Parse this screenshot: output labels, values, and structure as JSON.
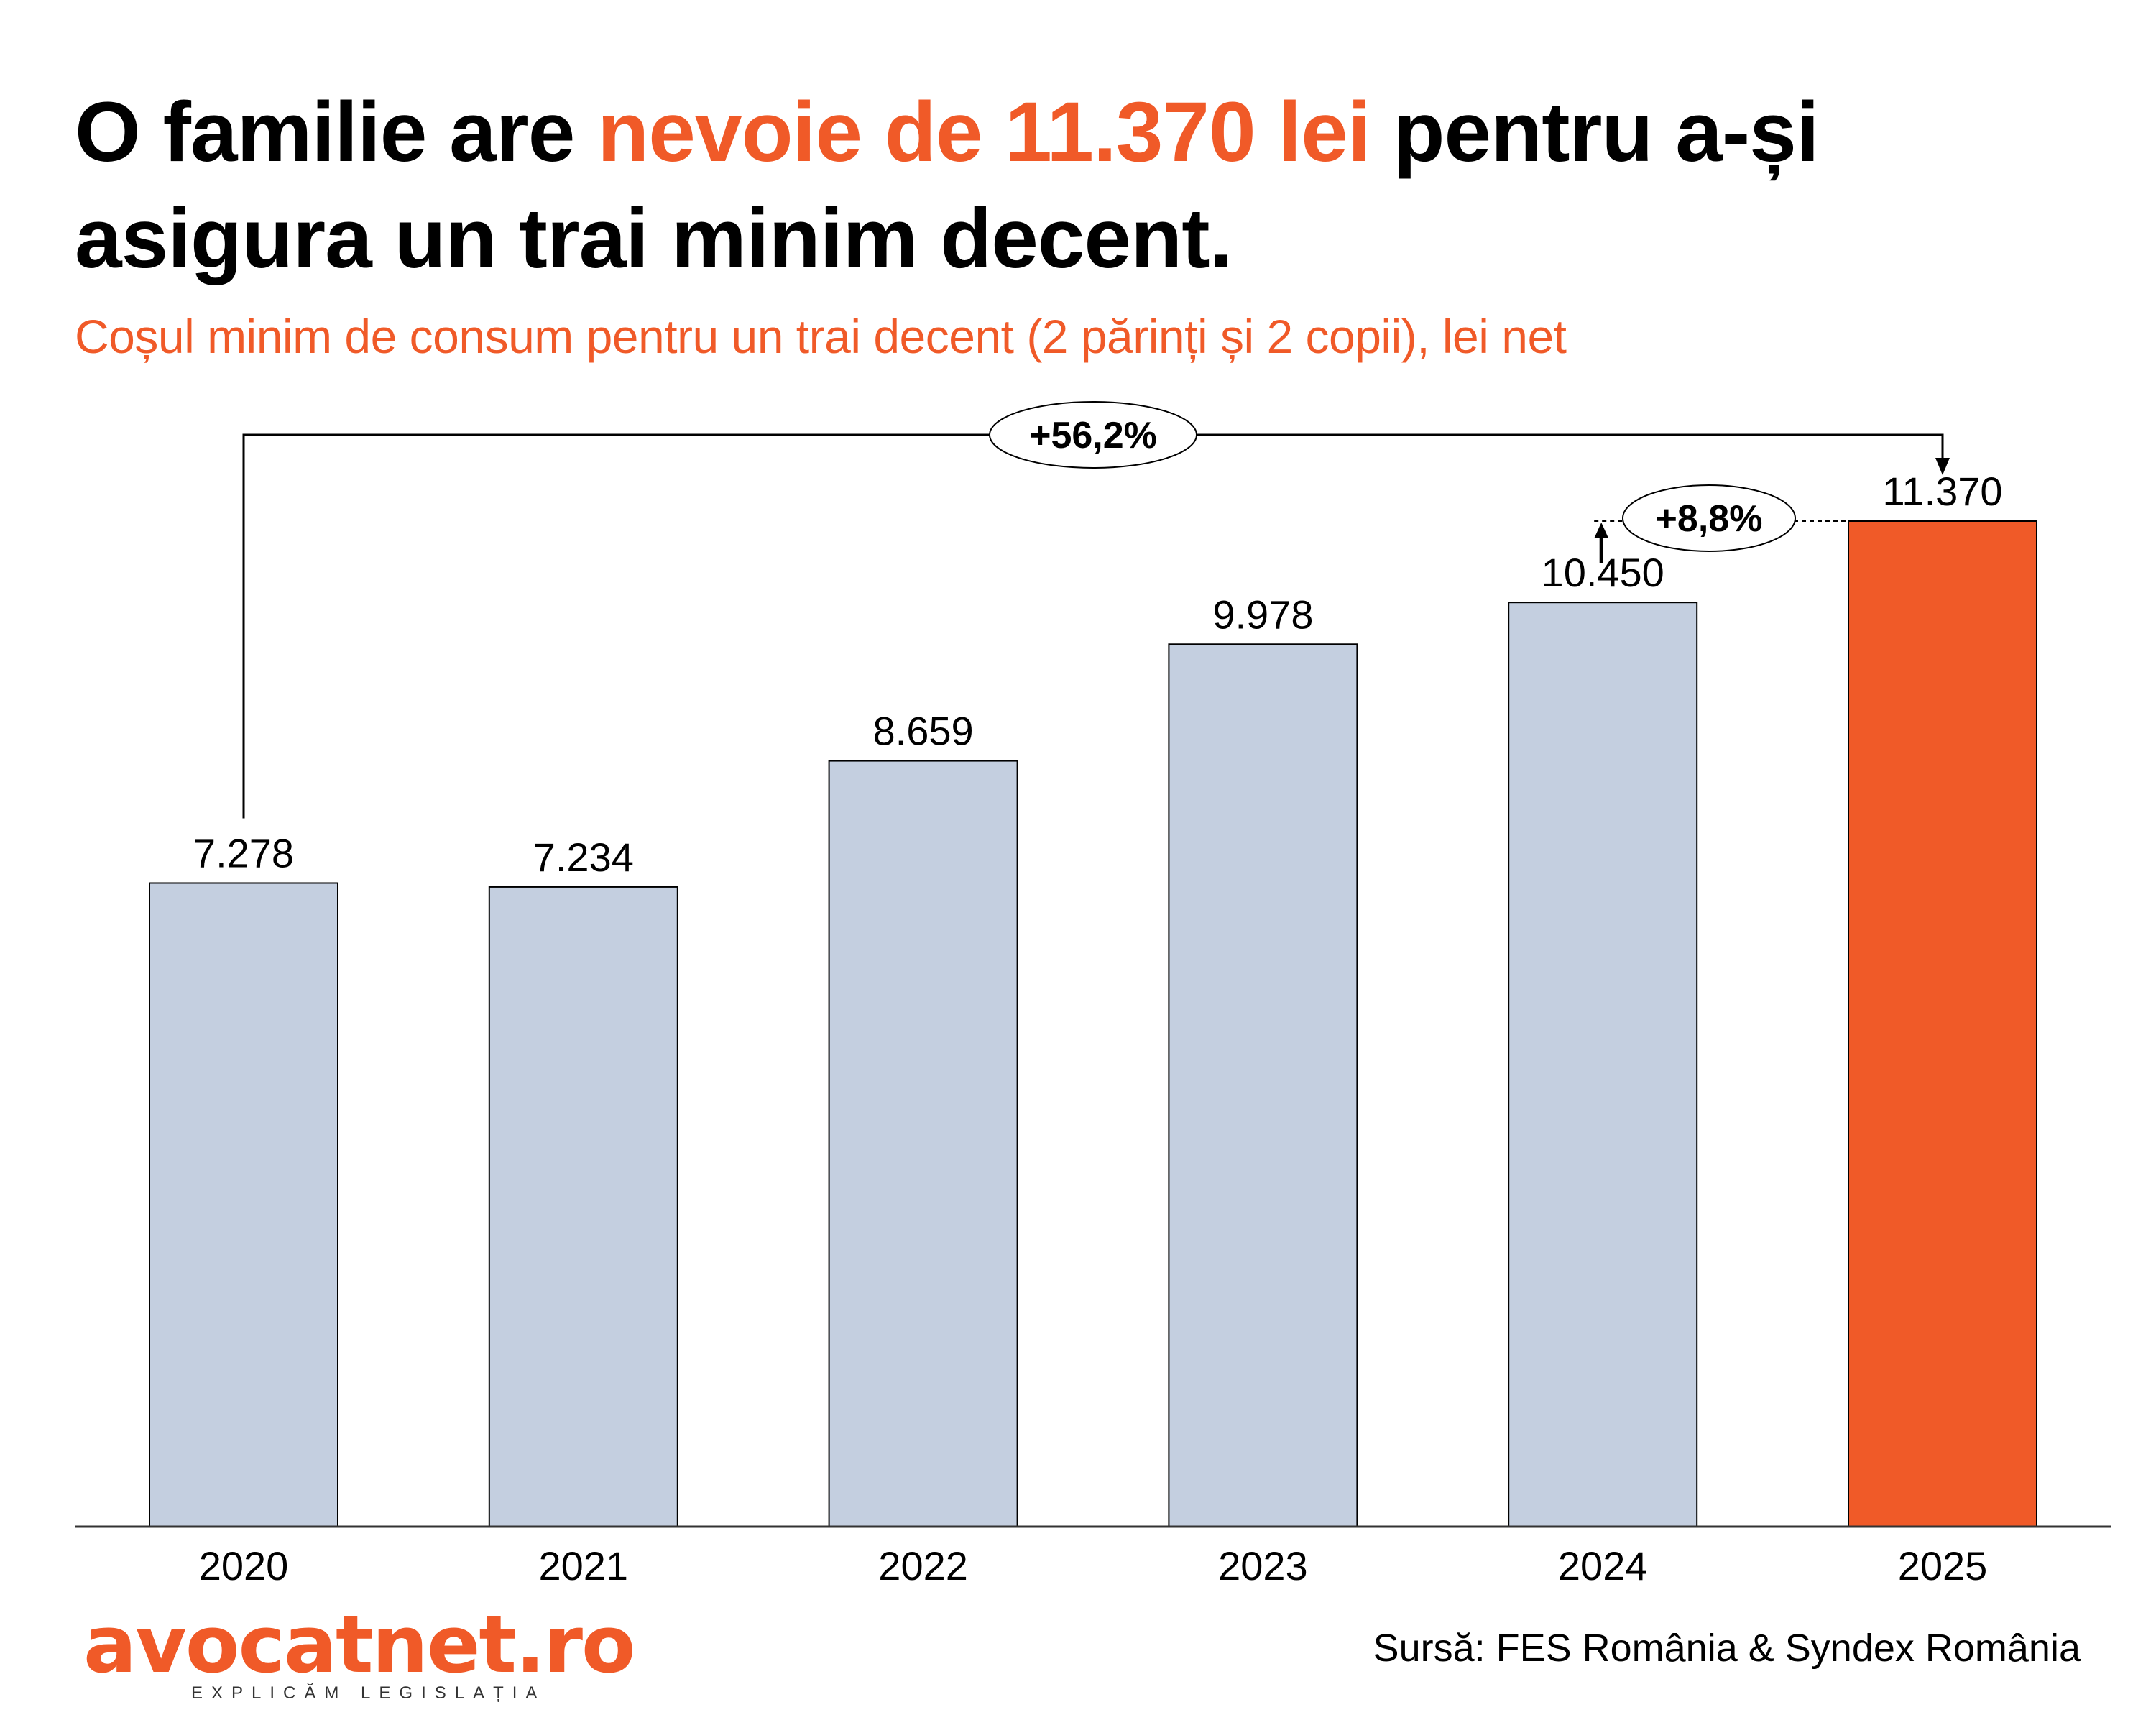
{
  "header": {
    "title_part1": "O familie are ",
    "title_highlight": "nevoie de 11.370 lei",
    "title_part2": " pentru a-și asigura un trai minim decent.",
    "subtitle": "Coșul minim de consum pentru un trai decent (2 părinți și 2 copii), lei net"
  },
  "colors": {
    "accent": "#f05a28",
    "bar_default": "#c4cfe0",
    "bar_highlight": "#f05a28",
    "outline": "#000000"
  },
  "chart_data": {
    "type": "bar",
    "title": "O familie are nevoie de 11.370 lei pentru a-și asigura un trai minim decent.",
    "subtitle": "Coșul minim de consum pentru un trai decent (2 părinți și 2 copii), lei net",
    "xlabel": "",
    "ylabel": "lei net",
    "categories": [
      "2020",
      "2021",
      "2022",
      "2023",
      "2024",
      "2025"
    ],
    "values": [
      7278,
      7234,
      8659,
      9978,
      10450,
      11370
    ],
    "value_labels": [
      "7.278",
      "7.234",
      "8.659",
      "9.978",
      "10.450",
      "11.370"
    ],
    "highlight_index": 5,
    "ylim": [
      0,
      11370
    ],
    "grid": false,
    "legend": "none",
    "annotations": [
      {
        "label": "+56,2%",
        "from": "2020",
        "to": "2025",
        "type": "bracket-arrow"
      },
      {
        "label": "+8,8%",
        "from": "2024",
        "to": "2025",
        "type": "dashed-level-arrow"
      }
    ]
  },
  "footer": {
    "logo_text": "avocatnet.ro",
    "logo_tagline": "EXPLICĂM LEGISLAȚIA",
    "source": "Sursă:  FES România & Syndex România"
  }
}
